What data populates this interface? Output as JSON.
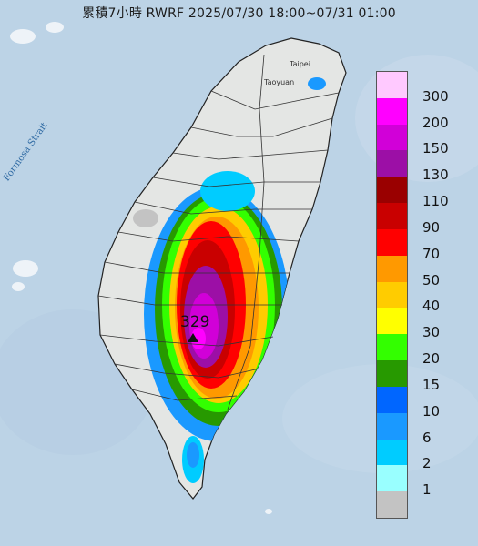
{
  "title": "累積7小時 RWRF 2025/07/30 18:00~07/31 01:00",
  "labels": {
    "strait": "Formosa Strait",
    "taipei": "Taipei",
    "taoyuan": "Taoyuan",
    "peak_value": "329"
  },
  "legend": {
    "levels": [
      "300",
      "200",
      "150",
      "130",
      "110",
      "90",
      "70",
      "50",
      "40",
      "30",
      "20",
      "15",
      "10",
      "6",
      "2",
      "1"
    ],
    "colors": [
      "#ffc9ff",
      "#ff00ff",
      "#d100d8",
      "#9c0fa6",
      "#9a0000",
      "#c90000",
      "#ff0000",
      "#ff9900",
      "#ffcc00",
      "#ffff00",
      "#33ff00",
      "#279900",
      "#0066ff",
      "#1a99ff",
      "#00ccff",
      "#99ffff",
      "#c3c3c3"
    ]
  }
}
